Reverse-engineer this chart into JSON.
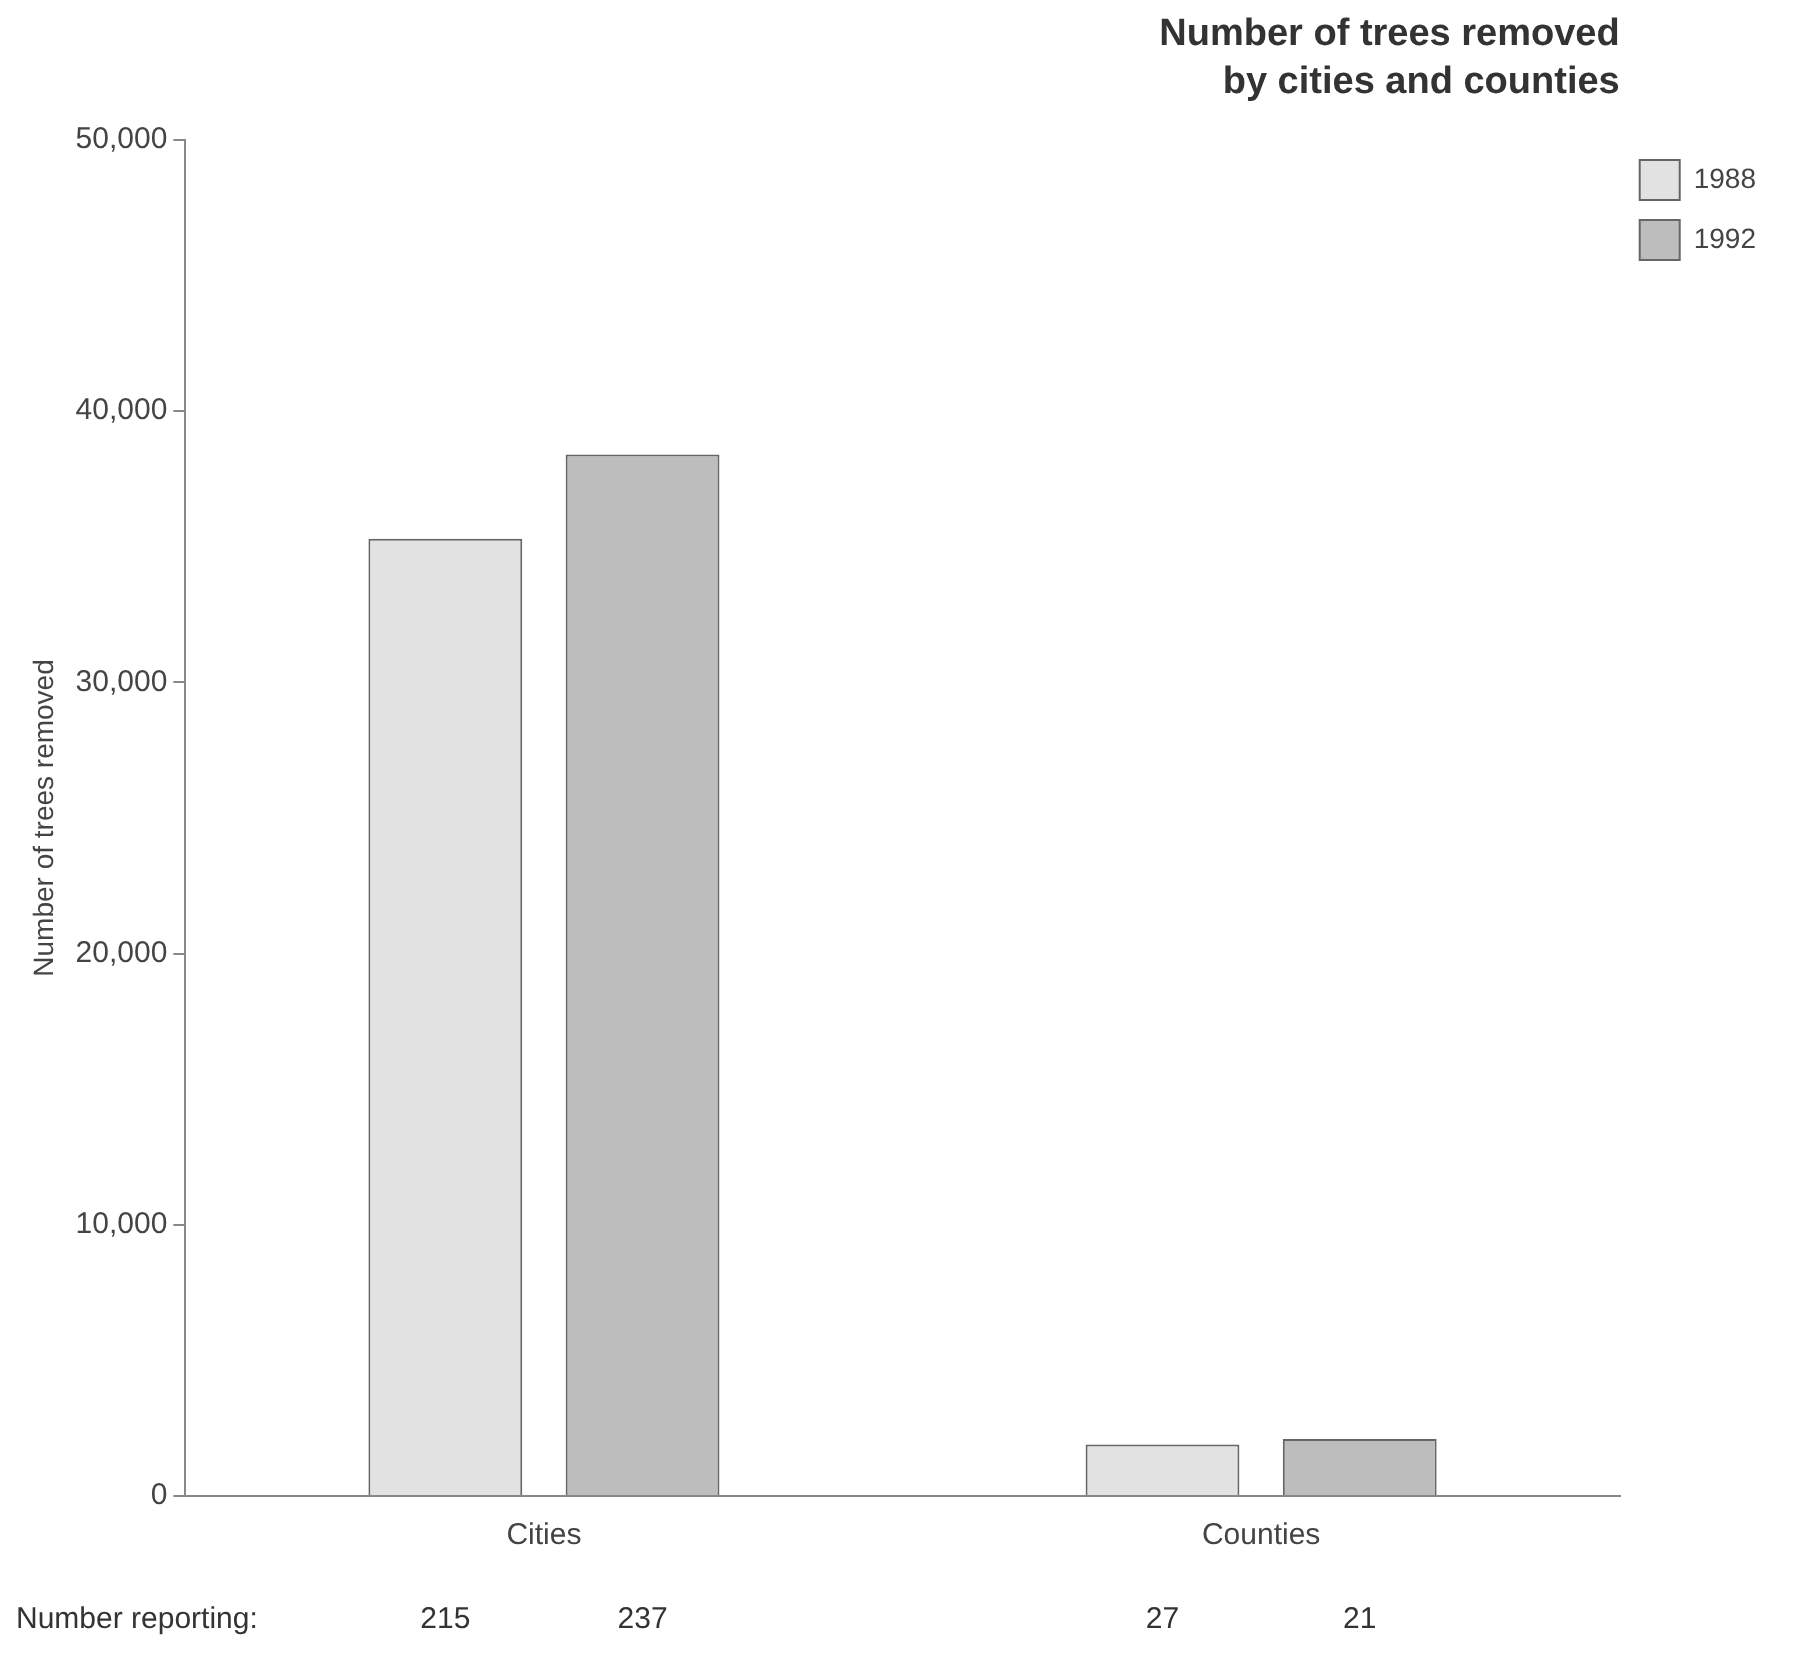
{
  "chart_data": {
    "type": "bar",
    "title": "Number of trees removed\nby cities and counties",
    "ylabel": "Number of trees removed",
    "categories": [
      "Cities",
      "Counties"
    ],
    "series": [
      {
        "name": "1988",
        "color": "#e2e2e2",
        "values": [
          35300,
          1900
        ]
      },
      {
        "name": "1992",
        "color": "#bdbdbd",
        "values": [
          38400,
          2100
        ]
      }
    ],
    "ylim": [
      0,
      50000
    ],
    "yticks": [
      {
        "value": 0,
        "label": "0"
      },
      {
        "value": 10000,
        "label": "10,000"
      },
      {
        "value": 20000,
        "label": "20,000"
      },
      {
        "value": 30000,
        "label": "30,000"
      },
      {
        "value": 40000,
        "label": "40,000"
      },
      {
        "value": 50000,
        "label": "50,000"
      }
    ],
    "legend": "top right",
    "annotations": [
      "Number reporting:",
      "215",
      "237",
      "27",
      "21"
    ]
  }
}
